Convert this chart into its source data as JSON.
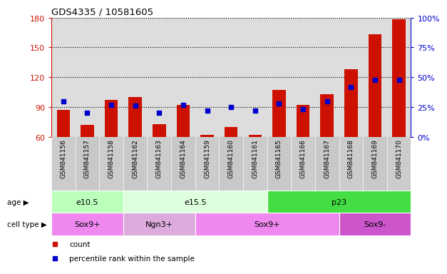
{
  "title": "GDS4335 / 10581605",
  "samples": [
    "GSM841156",
    "GSM841157",
    "GSM841158",
    "GSM841162",
    "GSM841163",
    "GSM841164",
    "GSM841159",
    "GSM841160",
    "GSM841161",
    "GSM841165",
    "GSM841166",
    "GSM841167",
    "GSM841168",
    "GSM841169",
    "GSM841170"
  ],
  "counts": [
    87,
    72,
    97,
    100,
    73,
    92,
    62,
    70,
    62,
    107,
    92,
    103,
    128,
    163,
    178
  ],
  "percentiles": [
    30,
    20,
    27,
    26,
    20,
    27,
    22,
    25,
    22,
    28,
    23,
    30,
    42,
    48,
    48
  ],
  "ylim_left": [
    60,
    180
  ],
  "ylim_right": [
    0,
    100
  ],
  "yticks_left": [
    60,
    90,
    120,
    150,
    180
  ],
  "yticks_right": [
    0,
    25,
    50,
    75,
    100
  ],
  "age_groups": [
    {
      "label": "e10.5",
      "start": 0,
      "end": 3,
      "color": "#bbffbb"
    },
    {
      "label": "e15.5",
      "start": 3,
      "end": 9,
      "color": "#ddffdd"
    },
    {
      "label": "p23",
      "start": 9,
      "end": 15,
      "color": "#44dd44"
    }
  ],
  "cell_groups": [
    {
      "label": "Sox9+",
      "start": 0,
      "end": 3,
      "color": "#ee88ee"
    },
    {
      "label": "Ngn3+",
      "start": 3,
      "end": 6,
      "color": "#ddaadd"
    },
    {
      "label": "Sox9+",
      "start": 6,
      "end": 12,
      "color": "#ee88ee"
    },
    {
      "label": "Sox9-",
      "start": 12,
      "end": 15,
      "color": "#cc55cc"
    }
  ],
  "bar_color": "#cc1100",
  "dot_color": "#0000cc",
  "grid_color": "#000000",
  "plot_bg_color": "#dddddd",
  "tick_label_bg": "#cccccc",
  "left_axis_color": "#cc1100",
  "right_axis_color": "#0000cc",
  "legend_items": [
    {
      "color": "#cc1100",
      "marker": "s",
      "label": "count"
    },
    {
      "color": "#0000cc",
      "marker": "s",
      "label": "percentile rank within the sample"
    }
  ]
}
